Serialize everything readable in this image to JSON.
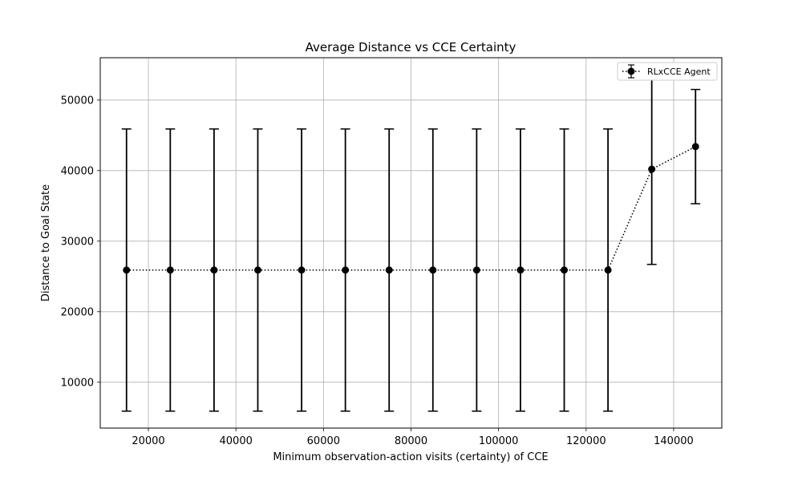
{
  "chart_data": {
    "type": "line",
    "title": "Average Distance vs CCE Certainty",
    "xlabel": "Minimum observation-action visits (certainty) of CCE",
    "ylabel": "Distance to Goal State",
    "xlim": [
      9000,
      151000
    ],
    "ylim": [
      3500,
      56000
    ],
    "x_ticks": [
      20000,
      40000,
      60000,
      80000,
      100000,
      120000,
      140000
    ],
    "y_ticks": [
      10000,
      20000,
      30000,
      40000,
      50000
    ],
    "grid": true,
    "legend_position": "top-right",
    "series": [
      {
        "name": "RLxCCE Agent",
        "color": "#000000",
        "line_style": "dotted",
        "marker": "circle",
        "x": [
          15000,
          25000,
          35000,
          45000,
          55000,
          65000,
          75000,
          85000,
          95000,
          105000,
          115000,
          125000,
          135000,
          145000
        ],
        "y": [
          25900,
          25900,
          25900,
          25900,
          25900,
          25900,
          25900,
          25900,
          25900,
          25900,
          25900,
          25900,
          40200,
          43400
        ],
        "y_err": [
          20000,
          20000,
          20000,
          20000,
          20000,
          20000,
          20000,
          20000,
          20000,
          20000,
          20000,
          20000,
          13500,
          8100
        ]
      }
    ]
  }
}
